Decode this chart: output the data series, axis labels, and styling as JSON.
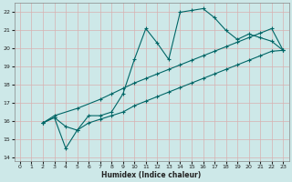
{
  "xlabel": "Humidex (Indice chaleur)",
  "xlim": [
    -0.5,
    23.5
  ],
  "ylim": [
    13.8,
    22.5
  ],
  "xticks": [
    0,
    1,
    2,
    3,
    4,
    5,
    6,
    7,
    8,
    9,
    10,
    11,
    12,
    13,
    14,
    15,
    16,
    17,
    18,
    19,
    20,
    21,
    22,
    23
  ],
  "yticks": [
    14,
    15,
    16,
    17,
    18,
    19,
    20,
    21,
    22
  ],
  "bg_color": "#cde8e8",
  "line_color": "#006666",
  "grid_color": "#b0d0d0",
  "curve1_x": [
    2,
    3,
    4,
    5,
    6,
    7,
    8,
    9,
    10,
    11,
    12,
    13,
    14,
    15,
    16,
    17,
    18,
    19,
    20,
    21,
    22,
    23
  ],
  "curve1_y": [
    15.9,
    16.2,
    15.7,
    15.5,
    16.3,
    16.3,
    16.5,
    17.5,
    19.4,
    21.1,
    20.3,
    19.4,
    22.0,
    22.1,
    22.2,
    21.7,
    21.0,
    20.5,
    20.8,
    20.6,
    20.4,
    19.9
  ],
  "curve2_x": [
    2,
    3,
    5,
    7,
    8,
    9,
    10,
    11,
    12,
    13,
    14,
    15,
    16,
    17,
    18,
    19,
    20,
    21,
    22,
    23
  ],
  "curve2_y": [
    15.9,
    16.3,
    16.7,
    17.2,
    17.5,
    17.8,
    18.1,
    18.35,
    18.6,
    18.85,
    19.1,
    19.35,
    19.6,
    19.85,
    20.1,
    20.35,
    20.6,
    20.85,
    21.1,
    19.9
  ],
  "curve3_x": [
    2,
    3,
    4,
    5,
    6,
    7,
    8,
    9,
    10,
    11,
    12,
    13,
    14,
    15,
    16,
    17,
    18,
    19,
    20,
    21,
    22,
    23
  ],
  "curve3_y": [
    15.9,
    16.2,
    14.5,
    15.5,
    15.9,
    16.1,
    16.3,
    16.5,
    16.85,
    17.1,
    17.35,
    17.6,
    17.85,
    18.1,
    18.35,
    18.6,
    18.85,
    19.1,
    19.35,
    19.6,
    19.85,
    19.9
  ]
}
